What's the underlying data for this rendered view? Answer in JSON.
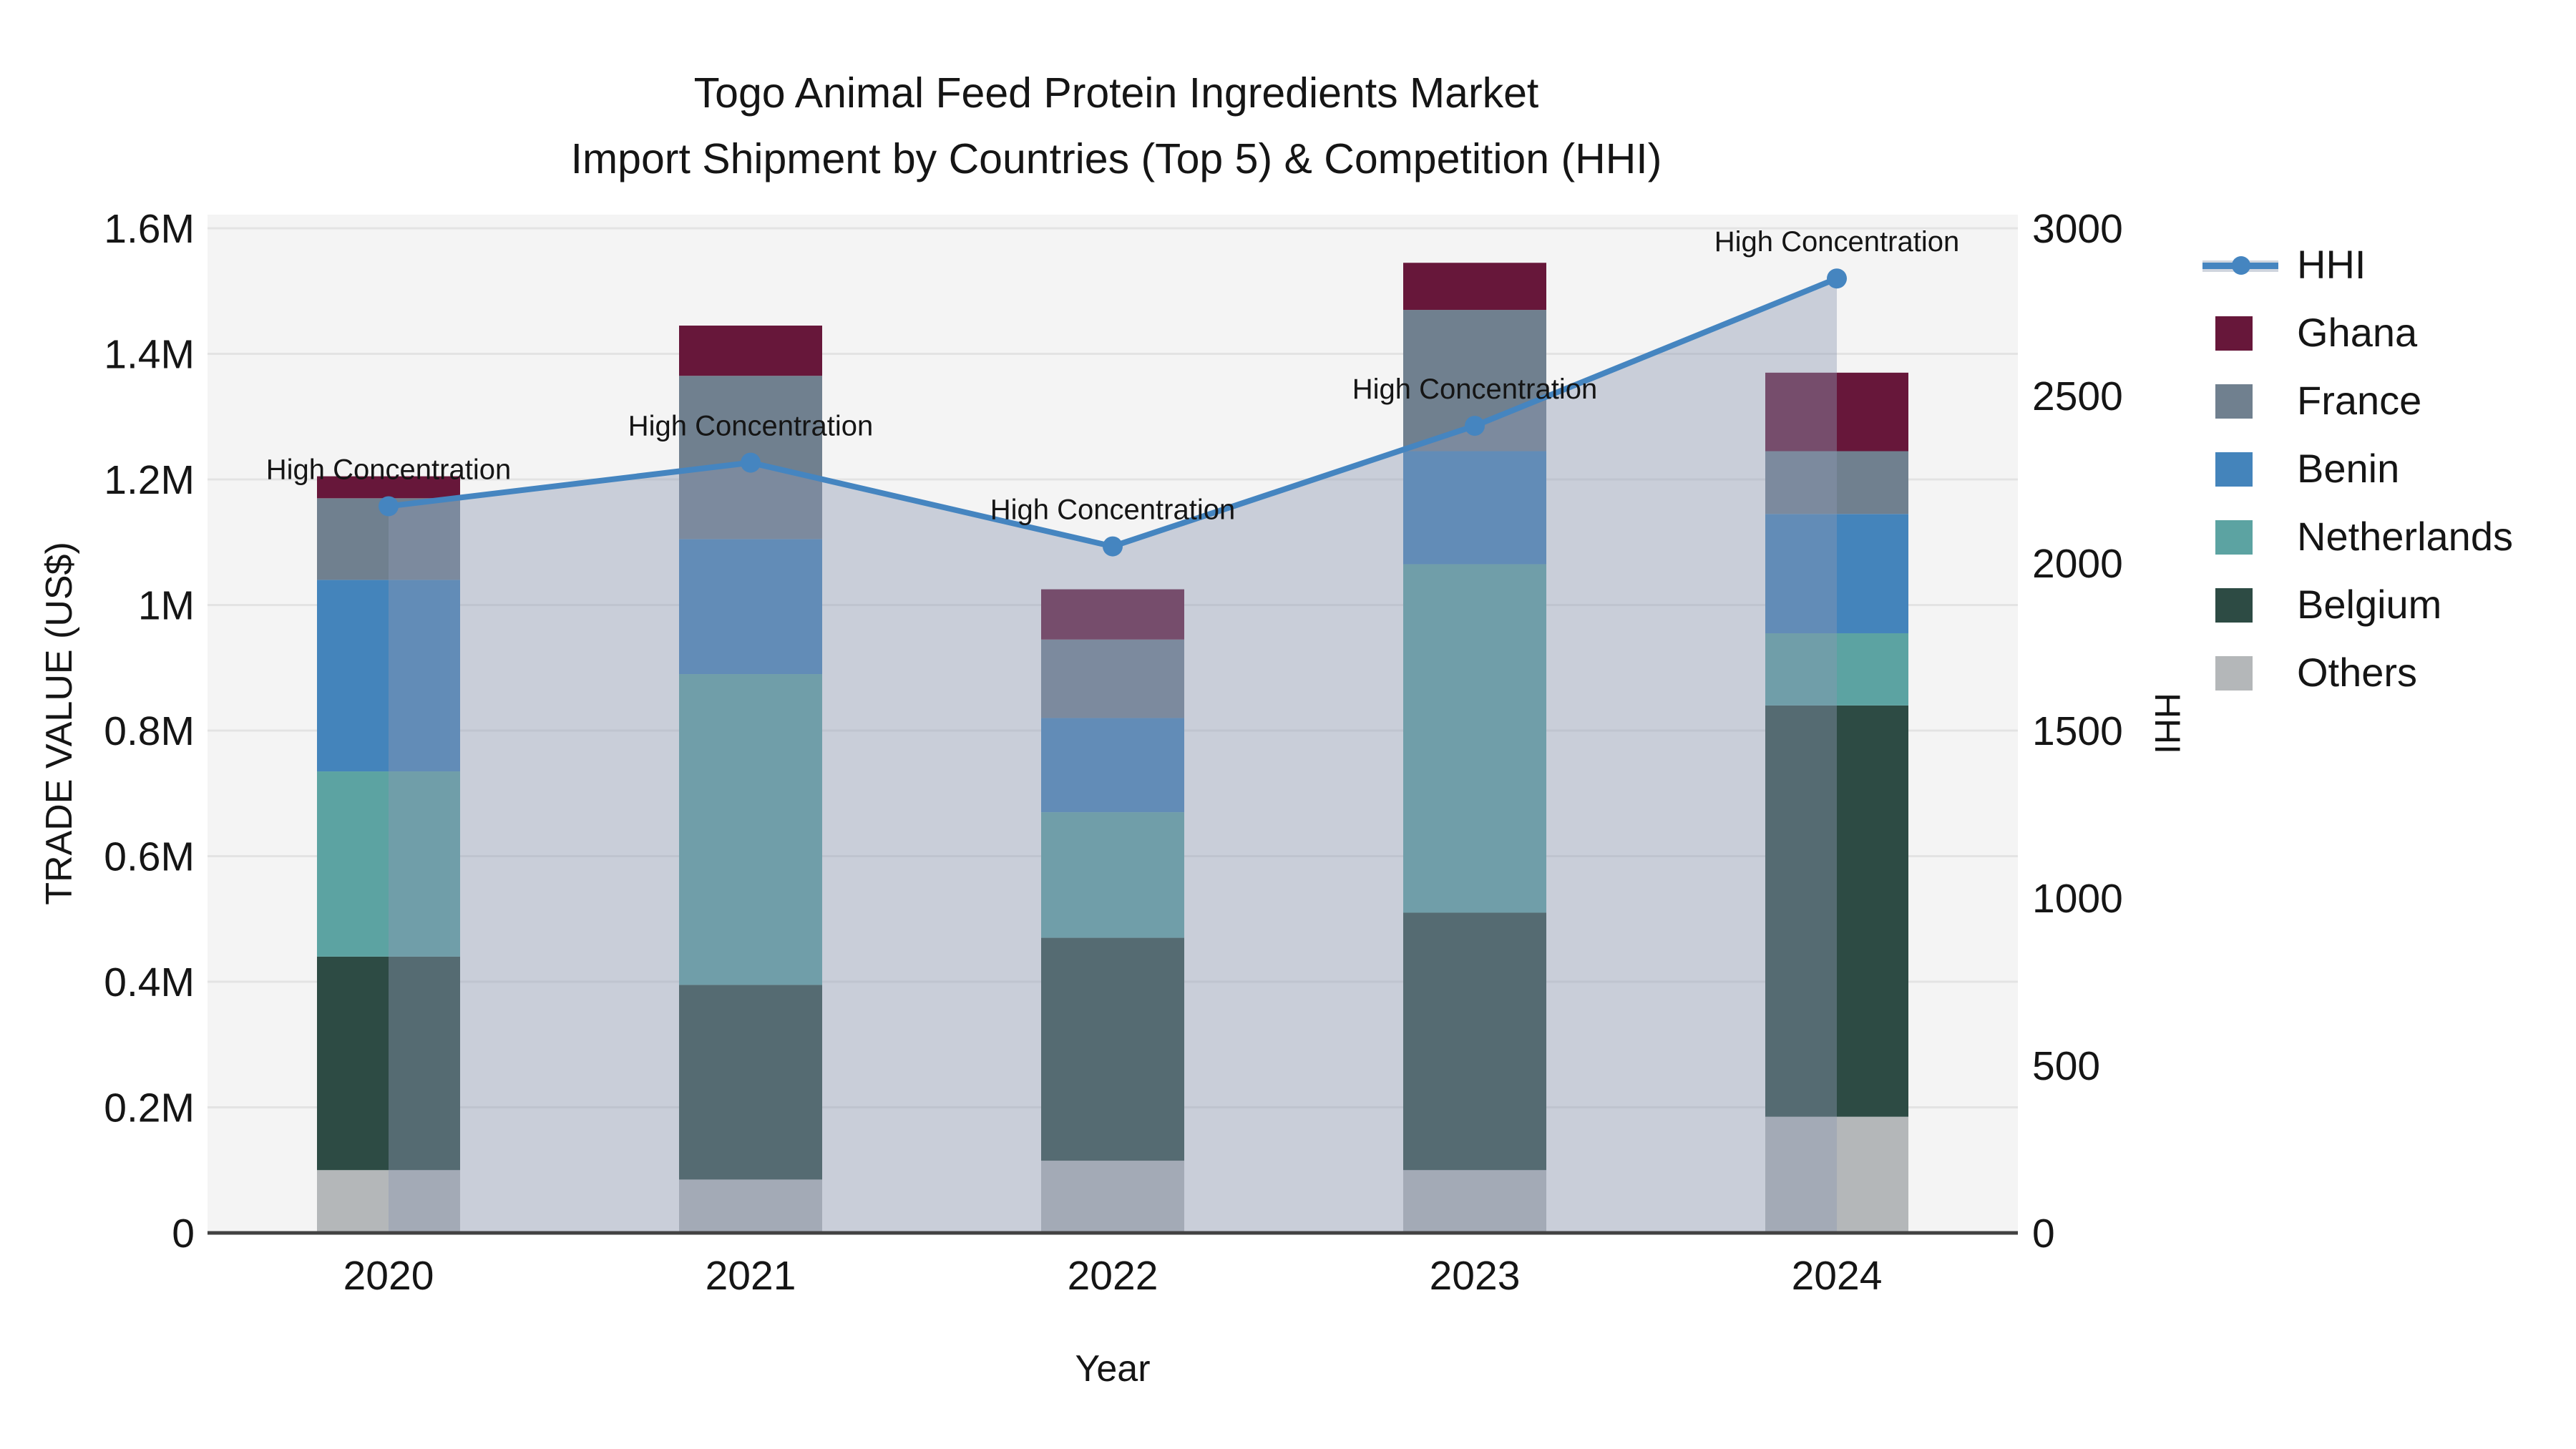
{
  "chart_data": {
    "type": "bar",
    "subtype": "stacked-bar-with-line",
    "title_line1": "Togo Animal Feed Protein Ingredients Market",
    "title_line2": "Import Shipment by Countries (Top 5) & Competition (HHI)",
    "xlabel": "Year",
    "ylabel_left": "TRADE VALUE (US$)",
    "ylabel_right": "HHI",
    "categories": [
      "2020",
      "2021",
      "2022",
      "2023",
      "2024"
    ],
    "series": [
      {
        "name": "Others",
        "color": "#b4b7b9",
        "values": [
          100000,
          85000,
          115000,
          100000,
          185000
        ]
      },
      {
        "name": "Belgium",
        "color": "#2d4b44",
        "values": [
          340000,
          310000,
          355000,
          410000,
          655000
        ]
      },
      {
        "name": "Netherlands",
        "color": "#5ca3a2",
        "values": [
          295000,
          495000,
          200000,
          555000,
          115000
        ]
      },
      {
        "name": "Benin",
        "color": "#4484bb",
        "values": [
          305000,
          215000,
          150000,
          180000,
          190000
        ]
      },
      {
        "name": "France",
        "color": "#70808f",
        "values": [
          130000,
          260000,
          125000,
          225000,
          100000
        ]
      },
      {
        "name": "Ghana",
        "color": "#67173a",
        "values": [
          35000,
          80000,
          80000,
          75000,
          125000
        ]
      }
    ],
    "line_series": {
      "name": "HHI",
      "color": "#4585c0",
      "area_color": "rgba(140,153,178,0.42)",
      "values": [
        2170,
        2300,
        2050,
        2410,
        2850
      ]
    },
    "annotations": [
      "High Concentration",
      "High Concentration",
      "High Concentration",
      "High Concentration",
      "High Concentration"
    ],
    "y_left": {
      "min": 0,
      "max": 1600000,
      "tick_labels": [
        "0",
        "0.2M",
        "0.4M",
        "0.6M",
        "0.8M",
        "1M",
        "1.2M",
        "1.4M",
        "1.6M"
      ]
    },
    "y_right": {
      "min": 0,
      "max": 3000,
      "tick_labels": [
        "0",
        "500",
        "1000",
        "1500",
        "2000",
        "2500",
        "3000"
      ]
    },
    "grid": true,
    "legend_position": "right",
    "legend": [
      {
        "label": "HHI",
        "type": "line",
        "color": "#4585c0"
      },
      {
        "label": "Ghana",
        "type": "patch",
        "color": "#67173a"
      },
      {
        "label": "France",
        "type": "patch",
        "color": "#70808f"
      },
      {
        "label": "Benin",
        "type": "patch",
        "color": "#4484bb"
      },
      {
        "label": "Netherlands",
        "type": "patch",
        "color": "#5ca3a2"
      },
      {
        "label": "Belgium",
        "type": "patch",
        "color": "#2d4b44"
      },
      {
        "label": "Others",
        "type": "patch",
        "color": "#b4b7b9"
      }
    ]
  },
  "colors": {
    "plot_bg": "#f4f4f4",
    "gridline": "#e3e3e3",
    "axis_line": "#424242",
    "text": "#151515"
  }
}
